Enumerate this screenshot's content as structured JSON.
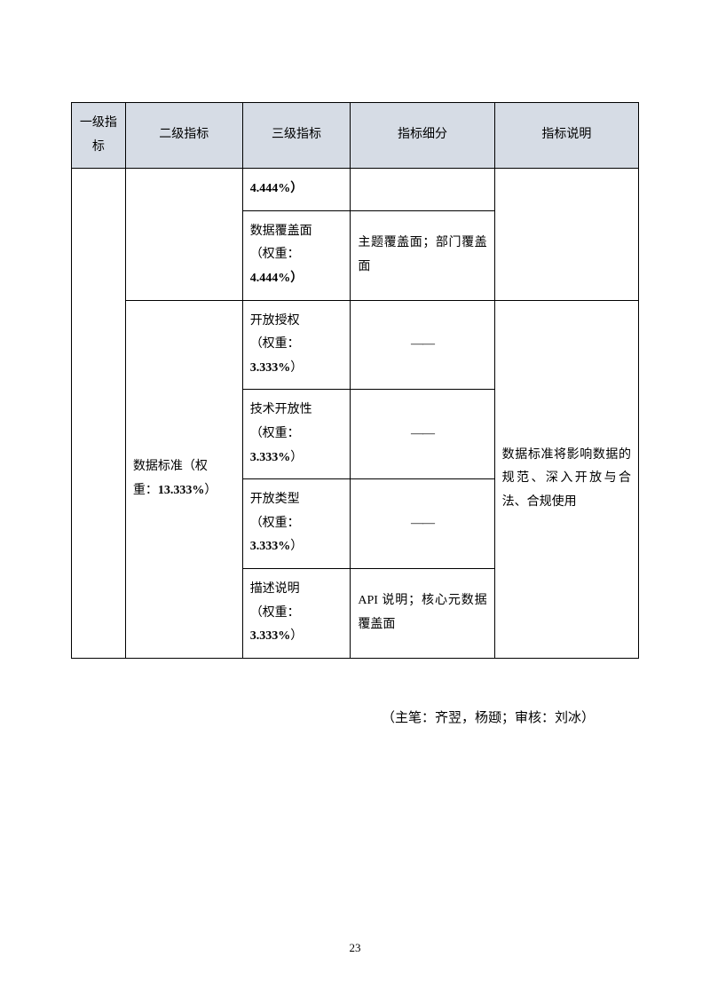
{
  "table": {
    "headers": {
      "col1": "一级指标",
      "col2": "二级指标",
      "col3": "三级指标",
      "col4": "指标细分",
      "col5": "指标说明"
    },
    "row1": {
      "col3": "4.444%）"
    },
    "row2": {
      "col3_line1": "数据覆盖面",
      "col3_line2": "（权重：",
      "col3_line3": "4.444%）",
      "col4": "主题覆盖面；部门覆盖面"
    },
    "row3": {
      "col2_line1": "数据标准（权",
      "col2_line2": "重：",
      "col2_weight": "13.333%",
      "col2_close": "）",
      "col3_line1": "开放授权",
      "col3_line2": "（权重：",
      "col3_line3": "3.333%",
      "col3_close": "）",
      "col4": "——",
      "col5": "数据标准将影响数据的规范、深入开放与合法、合规使用"
    },
    "row4": {
      "col3_line1": "技术开放性",
      "col3_line2": "（权重：",
      "col3_line3": "3.333%",
      "col3_close": "）",
      "col4": "——"
    },
    "row5": {
      "col3_line1": "开放类型",
      "col3_line2": "（权重：",
      "col3_line3": "3.333%",
      "col3_close": "）",
      "col4": "——"
    },
    "row6": {
      "col3_line1": "描述说明",
      "col3_line2": "（权重：",
      "col3_line3": "3.333%",
      "col3_close": "）",
      "col4": "API 说明；核心元数据覆盖面"
    }
  },
  "attribution": "（主笔：齐翌，杨颋；审核：刘冰）",
  "page_number": "23",
  "colors": {
    "header_bg": "#d6dce5",
    "border": "#000000",
    "background": "#ffffff"
  }
}
